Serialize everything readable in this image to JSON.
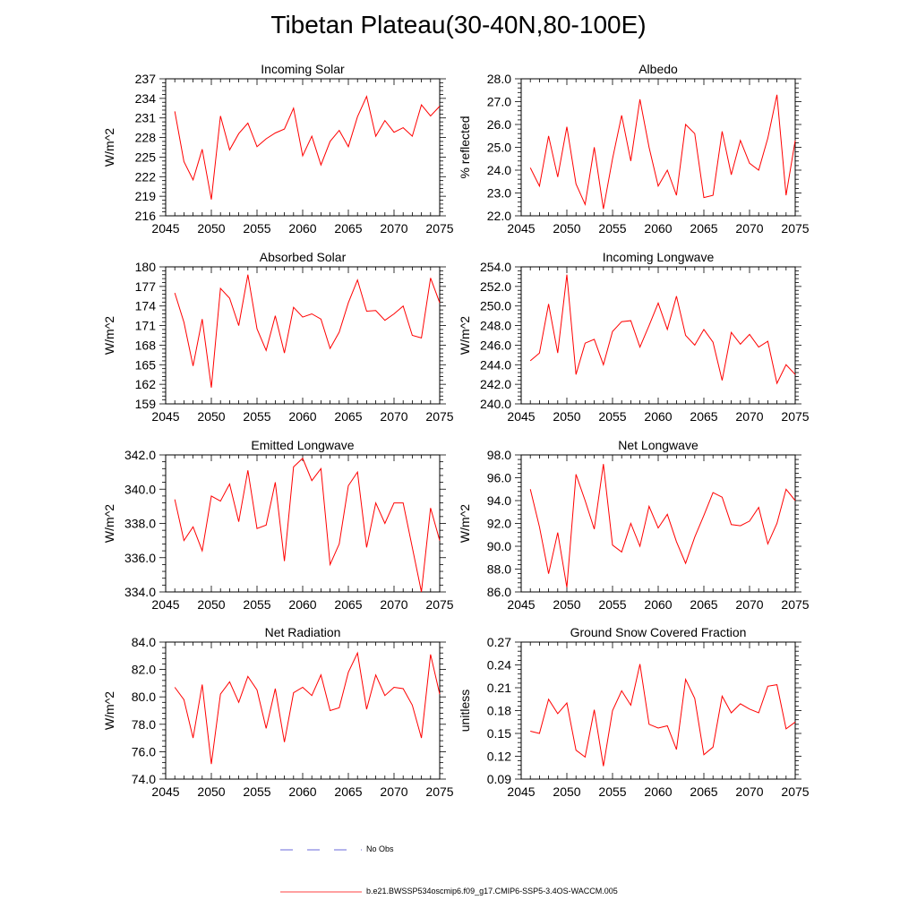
{
  "figure": {
    "title": "Tibetan Plateau(30-40N,80-100E)"
  },
  "legend": {
    "obs_label": "No Obs",
    "model_label": "b.e21.BWSSP534oscmip6.f09_g17.CMIP6-SSP5-3.4OS-WACCM.005",
    "obs_color": "#3a3ad0",
    "model_color": "#ff0000"
  },
  "chart_data": [
    {
      "type": "line",
      "title": "Incoming Solar",
      "ylabel": "W/m^2",
      "xlabel": "",
      "xlim": [
        2045,
        2075
      ],
      "ylim": [
        216,
        237
      ],
      "xticks": [
        2045,
        2050,
        2055,
        2060,
        2065,
        2070,
        2075
      ],
      "yticks": [
        "216",
        "219",
        "222",
        "225",
        "228",
        "231",
        "234",
        "237"
      ],
      "x": [
        2046,
        2047,
        2048,
        2049,
        2050,
        2051,
        2052,
        2053,
        2054,
        2055,
        2056,
        2057,
        2058,
        2059,
        2060,
        2061,
        2062,
        2063,
        2064,
        2065,
        2066,
        2067,
        2068,
        2069,
        2070,
        2071,
        2072,
        2073,
        2074,
        2075
      ],
      "series": [
        {
          "name": "b.e21.BWSSP534oscmip6.f09_g17.CMIP6-SSP5-3.4OS-WACCM.005",
          "values": [
            232.0,
            224.3,
            221.5,
            226.2,
            218.5,
            231.3,
            226.1,
            228.6,
            230.2,
            226.6,
            227.8,
            228.7,
            229.3,
            232.5,
            225.2,
            228.2,
            223.8,
            227.4,
            229.1,
            226.6,
            231.2,
            234.3,
            228.2,
            230.6,
            228.8,
            229.5,
            228.2,
            233.0,
            231.3,
            232.8
          ]
        }
      ]
    },
    {
      "type": "line",
      "title": "Albedo",
      "ylabel": "% reflected",
      "xlabel": "",
      "xlim": [
        2045,
        2075
      ],
      "ylim": [
        22.0,
        28.0
      ],
      "xticks": [
        2045,
        2050,
        2055,
        2060,
        2065,
        2070,
        2075
      ],
      "yticks": [
        "22.0",
        "23.0",
        "24.0",
        "25.0",
        "26.0",
        "27.0",
        "28.0"
      ],
      "x": [
        2046,
        2047,
        2048,
        2049,
        2050,
        2051,
        2052,
        2053,
        2054,
        2055,
        2056,
        2057,
        2058,
        2059,
        2060,
        2061,
        2062,
        2063,
        2064,
        2065,
        2066,
        2067,
        2068,
        2069,
        2070,
        2071,
        2072,
        2073,
        2074,
        2075
      ],
      "series": [
        {
          "name": "b.e21.BWSSP534oscmip6.f09_g17.CMIP6-SSP5-3.4OS-WACCM.005",
          "values": [
            24.1,
            23.3,
            25.5,
            23.7,
            25.9,
            23.4,
            22.5,
            25.0,
            22.3,
            24.5,
            26.4,
            24.4,
            27.1,
            25.0,
            23.3,
            24.0,
            22.9,
            26.0,
            25.6,
            22.8,
            22.9,
            25.7,
            23.8,
            25.3,
            24.3,
            24.0,
            25.4,
            27.3,
            22.9,
            25.3
          ]
        }
      ]
    },
    {
      "type": "line",
      "title": "Absorbed Solar",
      "ylabel": "W/m^2",
      "xlabel": "",
      "xlim": [
        2045,
        2075
      ],
      "ylim": [
        159,
        180
      ],
      "xticks": [
        2045,
        2050,
        2055,
        2060,
        2065,
        2070,
        2075
      ],
      "yticks": [
        "159",
        "162",
        "165",
        "168",
        "171",
        "174",
        "177",
        "180"
      ],
      "x": [
        2046,
        2047,
        2048,
        2049,
        2050,
        2051,
        2052,
        2053,
        2054,
        2055,
        2056,
        2057,
        2058,
        2059,
        2060,
        2061,
        2062,
        2063,
        2064,
        2065,
        2066,
        2067,
        2068,
        2069,
        2070,
        2071,
        2072,
        2073,
        2074,
        2075
      ],
      "series": [
        {
          "name": "b.e21.BWSSP534oscmip6.f09_g17.CMIP6-SSP5-3.4OS-WACCM.005",
          "values": [
            176.0,
            171.5,
            164.8,
            172.0,
            161.5,
            176.7,
            175.2,
            171.0,
            178.8,
            170.5,
            167.2,
            172.5,
            166.8,
            173.8,
            172.3,
            172.8,
            172.0,
            167.5,
            170.0,
            174.5,
            178.0,
            173.2,
            173.3,
            171.8,
            172.8,
            174.0,
            169.5,
            169.1,
            178.3,
            174.5
          ]
        }
      ]
    },
    {
      "type": "line",
      "title": "Incoming Longwave",
      "ylabel": "W/m^2",
      "xlabel": "",
      "xlim": [
        2045,
        2075
      ],
      "ylim": [
        240.0,
        254.0
      ],
      "xticks": [
        2045,
        2050,
        2055,
        2060,
        2065,
        2070,
        2075
      ],
      "yticks": [
        "240.0",
        "242.0",
        "244.0",
        "246.0",
        "248.0",
        "250.0",
        "252.0",
        "254.0"
      ],
      "x": [
        2046,
        2047,
        2048,
        2049,
        2050,
        2051,
        2052,
        2053,
        2054,
        2055,
        2056,
        2057,
        2058,
        2059,
        2060,
        2061,
        2062,
        2063,
        2064,
        2065,
        2066,
        2067,
        2068,
        2069,
        2070,
        2071,
        2072,
        2073,
        2074,
        2075
      ],
      "series": [
        {
          "name": "b.e21.BWSSP534oscmip6.f09_g17.CMIP6-SSP5-3.4OS-WACCM.005",
          "values": [
            244.4,
            245.2,
            250.2,
            245.2,
            253.2,
            243.0,
            246.2,
            246.6,
            244.0,
            247.4,
            248.4,
            248.5,
            245.8,
            248.0,
            250.3,
            247.6,
            251.0,
            247.0,
            246.0,
            247.6,
            246.3,
            242.4,
            247.3,
            246.1,
            247.1,
            245.8,
            246.4,
            242.1,
            244.0,
            243.0
          ]
        }
      ]
    },
    {
      "type": "line",
      "title": "Emitted Longwave",
      "ylabel": "W/m^2",
      "xlabel": "",
      "xlim": [
        2045,
        2075
      ],
      "ylim": [
        334.0,
        342.0
      ],
      "xticks": [
        2045,
        2050,
        2055,
        2060,
        2065,
        2070,
        2075
      ],
      "yticks": [
        "334.0",
        "336.0",
        "338.0",
        "340.0",
        "342.0"
      ],
      "x": [
        2046,
        2047,
        2048,
        2049,
        2050,
        2051,
        2052,
        2053,
        2054,
        2055,
        2056,
        2057,
        2058,
        2059,
        2060,
        2061,
        2062,
        2063,
        2064,
        2065,
        2066,
        2067,
        2068,
        2069,
        2070,
        2071,
        2072,
        2073,
        2074,
        2075
      ],
      "series": [
        {
          "name": "b.e21.BWSSP534oscmip6.f09_g17.CMIP6-SSP5-3.4OS-WACCM.005",
          "values": [
            339.4,
            337.0,
            337.8,
            336.4,
            339.6,
            339.3,
            340.3,
            338.1,
            341.1,
            337.7,
            337.9,
            340.4,
            335.8,
            341.3,
            341.8,
            340.5,
            341.2,
            335.6,
            336.8,
            340.2,
            341.0,
            336.6,
            339.2,
            338.0,
            339.2,
            339.2,
            336.6,
            334.0,
            338.9,
            337.0
          ]
        }
      ]
    },
    {
      "type": "line",
      "title": "Net Longwave",
      "ylabel": "W/m^2",
      "xlabel": "",
      "xlim": [
        2045,
        2075
      ],
      "ylim": [
        86.0,
        98.0
      ],
      "xticks": [
        2045,
        2050,
        2055,
        2060,
        2065,
        2070,
        2075
      ],
      "yticks": [
        "86.0",
        "88.0",
        "90.0",
        "92.0",
        "94.0",
        "96.0",
        "98.0"
      ],
      "x": [
        2046,
        2047,
        2048,
        2049,
        2050,
        2051,
        2052,
        2053,
        2054,
        2055,
        2056,
        2057,
        2058,
        2059,
        2060,
        2061,
        2062,
        2063,
        2064,
        2065,
        2066,
        2067,
        2068,
        2069,
        2070,
        2071,
        2072,
        2073,
        2074,
        2075
      ],
      "series": [
        {
          "name": "b.e21.BWSSP534oscmip6.f09_g17.CMIP6-SSP5-3.4OS-WACCM.005",
          "values": [
            95.0,
            91.7,
            87.6,
            91.2,
            86.4,
            96.3,
            94.0,
            91.5,
            97.2,
            90.1,
            89.5,
            92.0,
            90.0,
            93.5,
            91.6,
            92.8,
            90.4,
            88.5,
            90.8,
            92.7,
            94.7,
            94.3,
            91.9,
            91.8,
            92.2,
            93.4,
            90.2,
            92.0,
            95.0,
            94.0
          ]
        }
      ]
    },
    {
      "type": "line",
      "title": "Net Radiation",
      "ylabel": "W/m^2",
      "xlabel": "",
      "xlim": [
        2045,
        2075
      ],
      "ylim": [
        74.0,
        84.0
      ],
      "xticks": [
        2045,
        2050,
        2055,
        2060,
        2065,
        2070,
        2075
      ],
      "yticks": [
        "74.0",
        "76.0",
        "78.0",
        "80.0",
        "82.0",
        "84.0"
      ],
      "x": [
        2046,
        2047,
        2048,
        2049,
        2050,
        2051,
        2052,
        2053,
        2054,
        2055,
        2056,
        2057,
        2058,
        2059,
        2060,
        2061,
        2062,
        2063,
        2064,
        2065,
        2066,
        2067,
        2068,
        2069,
        2070,
        2071,
        2072,
        2073,
        2074,
        2075
      ],
      "series": [
        {
          "name": "b.e21.BWSSP534oscmip6.f09_g17.CMIP6-SSP5-3.4OS-WACCM.005",
          "values": [
            80.7,
            79.8,
            77.0,
            80.9,
            75.1,
            80.2,
            81.1,
            79.6,
            81.5,
            80.5,
            77.7,
            80.6,
            76.7,
            80.3,
            80.7,
            80.1,
            81.6,
            79.0,
            79.2,
            81.8,
            83.2,
            79.1,
            81.6,
            80.1,
            80.7,
            80.6,
            79.4,
            77.0,
            83.1,
            80.2
          ]
        }
      ]
    },
    {
      "type": "line",
      "title": "Ground Snow Covered Fraction",
      "ylabel": "unitless",
      "xlabel": "",
      "xlim": [
        2045,
        2075
      ],
      "ylim": [
        0.09,
        0.27
      ],
      "xticks": [
        2045,
        2050,
        2055,
        2060,
        2065,
        2070,
        2075
      ],
      "yticks": [
        "0.09",
        "0.12",
        "0.15",
        "0.18",
        "0.21",
        "0.24",
        "0.27"
      ],
      "x": [
        2046,
        2047,
        2048,
        2049,
        2050,
        2051,
        2052,
        2053,
        2054,
        2055,
        2056,
        2057,
        2058,
        2059,
        2060,
        2061,
        2062,
        2063,
        2064,
        2065,
        2066,
        2067,
        2068,
        2069,
        2070,
        2071,
        2072,
        2073,
        2074,
        2075
      ],
      "series": [
        {
          "name": "b.e21.BWSSP534oscmip6.f09_g17.CMIP6-SSP5-3.4OS-WACCM.005",
          "values": [
            0.153,
            0.15,
            0.195,
            0.176,
            0.19,
            0.128,
            0.119,
            0.181,
            0.107,
            0.18,
            0.206,
            0.187,
            0.241,
            0.162,
            0.157,
            0.16,
            0.129,
            0.221,
            0.196,
            0.122,
            0.132,
            0.199,
            0.177,
            0.189,
            0.182,
            0.177,
            0.212,
            0.214,
            0.156,
            0.165
          ]
        }
      ]
    }
  ]
}
